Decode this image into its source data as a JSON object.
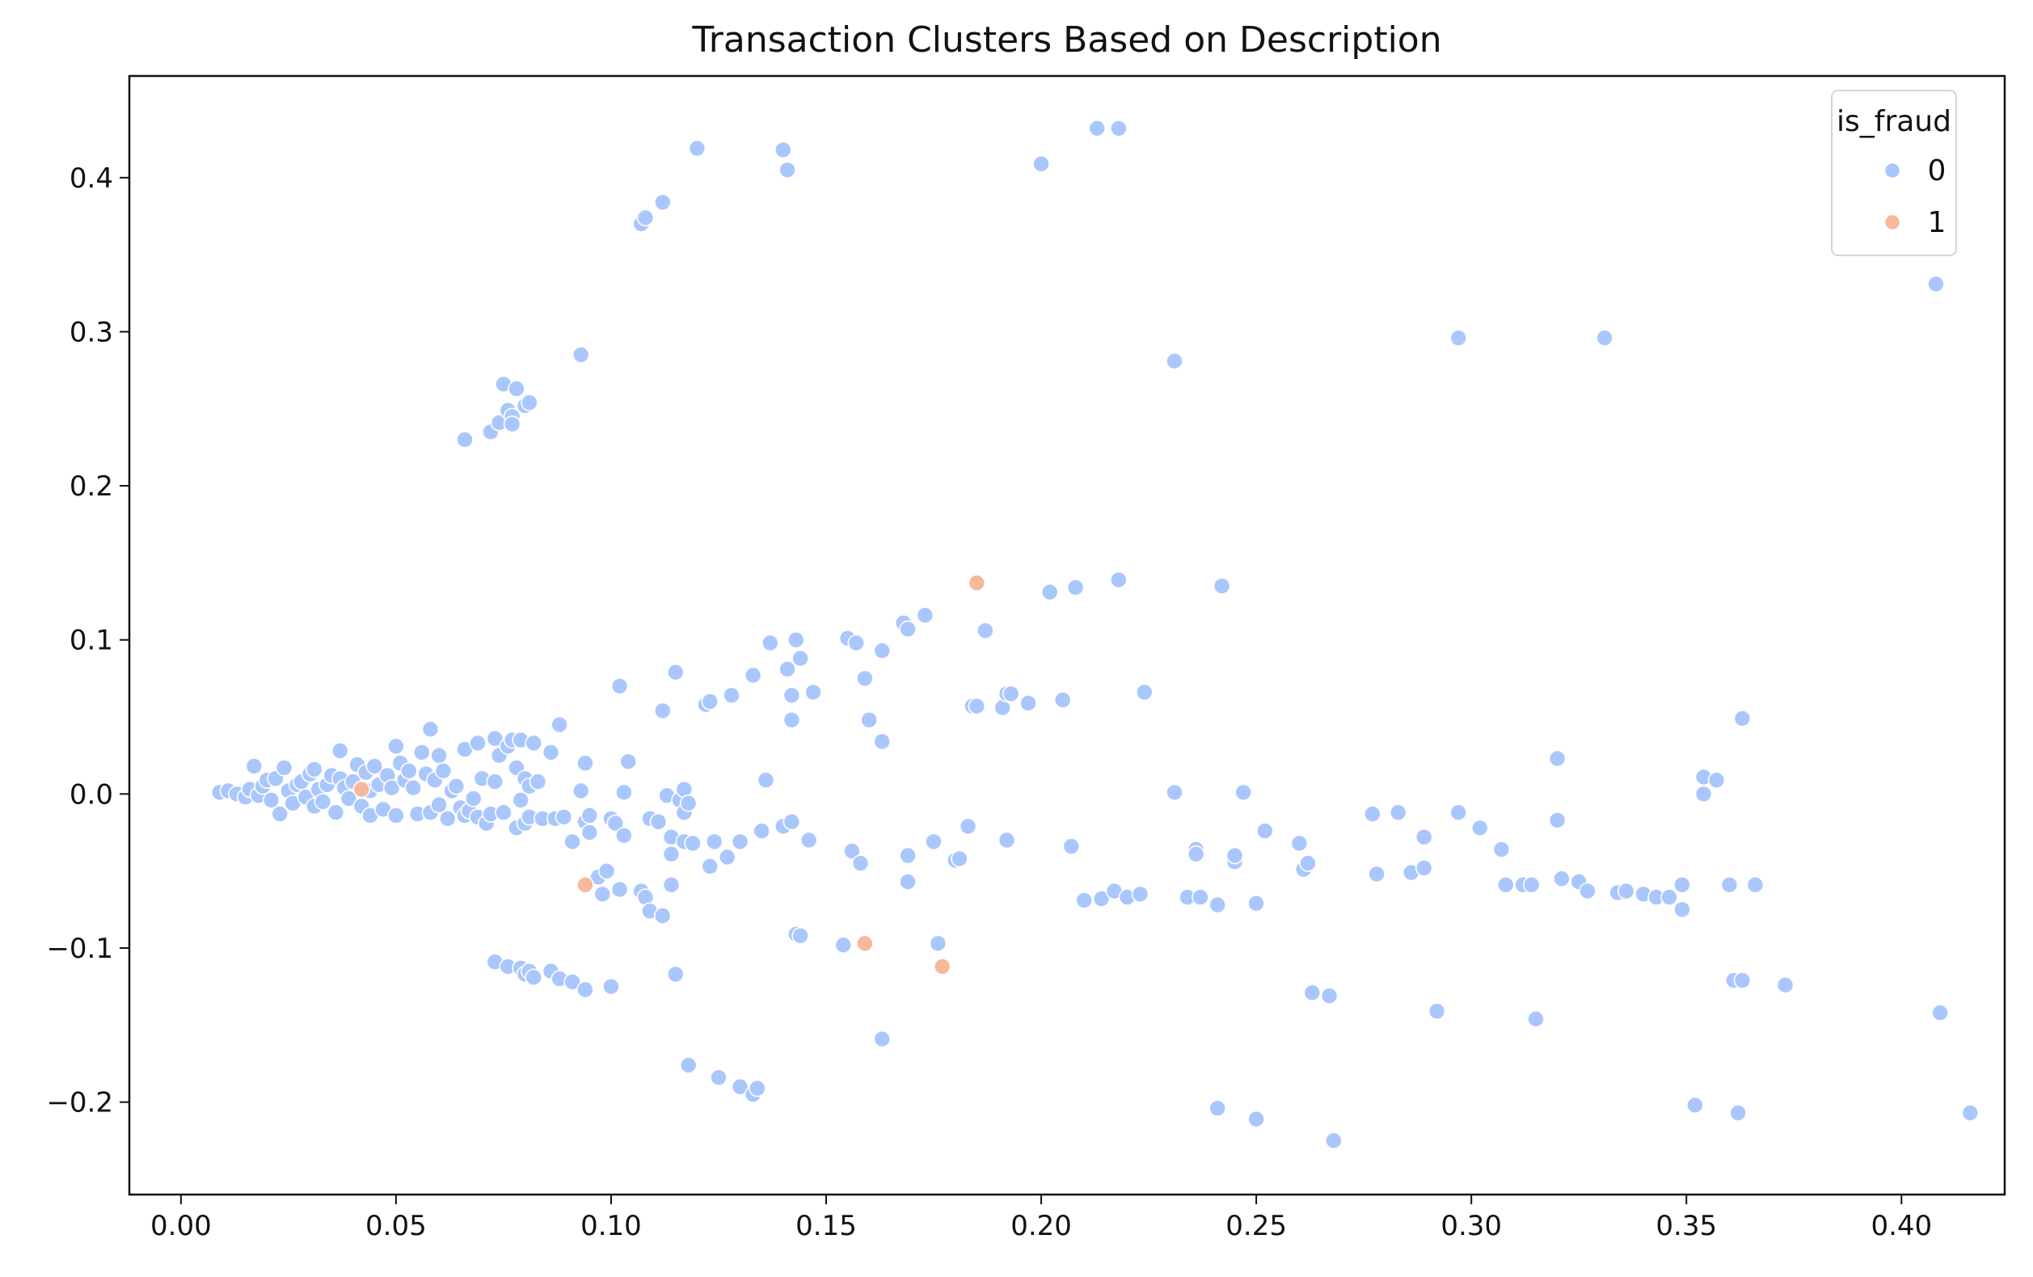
{
  "chart_data": {
    "type": "scatter",
    "title": "Transaction Clusters Based on Description",
    "xlabel": "",
    "ylabel": "",
    "xlim": [
      -0.012,
      0.424
    ],
    "ylim": [
      -0.26,
      0.466
    ],
    "xticks": [
      0.0,
      0.05,
      0.1,
      0.15,
      0.2,
      0.25,
      0.3,
      0.35,
      0.4
    ],
    "xtick_labels": [
      "0.00",
      "0.05",
      "0.10",
      "0.15",
      "0.20",
      "0.25",
      "0.30",
      "0.35",
      "0.40"
    ],
    "yticks": [
      -0.2,
      -0.1,
      0.0,
      0.1,
      0.2,
      0.3,
      0.4
    ],
    "ytick_labels": [
      "−0.2",
      "−0.1",
      "0.0",
      "0.1",
      "0.2",
      "0.3",
      "0.4"
    ],
    "grid": false,
    "legend": {
      "title": "is_fraud",
      "placement": "top-right",
      "entries": [
        {
          "label": "0",
          "color": "#aac7fd"
        },
        {
          "label": "1",
          "color": "#f7b89c"
        }
      ]
    },
    "series": [
      {
        "label": "0",
        "color": "#aac7fd",
        "points": [
          [
            0.009,
            0.001
          ],
          [
            0.011,
            0.002
          ],
          [
            0.013,
            0.0
          ],
          [
            0.015,
            -0.002
          ],
          [
            0.016,
            0.003
          ],
          [
            0.017,
            0.018
          ],
          [
            0.018,
            -0.001
          ],
          [
            0.019,
            0.005
          ],
          [
            0.02,
            0.009
          ],
          [
            0.021,
            -0.004
          ],
          [
            0.022,
            0.01
          ],
          [
            0.023,
            -0.013
          ],
          [
            0.024,
            0.017
          ],
          [
            0.025,
            0.002
          ],
          [
            0.026,
            -0.006
          ],
          [
            0.027,
            0.006
          ],
          [
            0.028,
            0.008
          ],
          [
            0.029,
            -0.002
          ],
          [
            0.03,
            0.013
          ],
          [
            0.031,
            -0.008
          ],
          [
            0.031,
            0.016
          ],
          [
            0.032,
            0.003
          ],
          [
            0.033,
            -0.005
          ],
          [
            0.034,
            0.006
          ],
          [
            0.035,
            0.012
          ],
          [
            0.036,
            -0.012
          ],
          [
            0.037,
            0.028
          ],
          [
            0.037,
            0.01
          ],
          [
            0.038,
            0.004
          ],
          [
            0.039,
            -0.003
          ],
          [
            0.04,
            0.008
          ],
          [
            0.041,
            0.019
          ],
          [
            0.042,
            -0.008
          ],
          [
            0.043,
            0.014
          ],
          [
            0.044,
            0.002
          ],
          [
            0.044,
            -0.014
          ],
          [
            0.045,
            0.018
          ],
          [
            0.046,
            0.006
          ],
          [
            0.047,
            -0.01
          ],
          [
            0.048,
            0.012
          ],
          [
            0.049,
            0.004
          ],
          [
            0.05,
            0.031
          ],
          [
            0.05,
            -0.014
          ],
          [
            0.051,
            0.02
          ],
          [
            0.052,
            0.009
          ],
          [
            0.053,
            0.015
          ],
          [
            0.054,
            0.004
          ],
          [
            0.055,
            -0.013
          ],
          [
            0.056,
            0.027
          ],
          [
            0.057,
            0.013
          ],
          [
            0.058,
            0.042
          ],
          [
            0.058,
            -0.012
          ],
          [
            0.059,
            0.009
          ],
          [
            0.06,
            0.025
          ],
          [
            0.06,
            -0.007
          ],
          [
            0.061,
            0.015
          ],
          [
            0.062,
            -0.016
          ],
          [
            0.063,
            0.002
          ],
          [
            0.064,
            0.005
          ],
          [
            0.065,
            -0.009
          ],
          [
            0.066,
            0.029
          ],
          [
            0.066,
            -0.014
          ],
          [
            0.067,
            -0.011
          ],
          [
            0.068,
            -0.003
          ],
          [
            0.069,
            0.033
          ],
          [
            0.069,
            -0.015
          ],
          [
            0.07,
            0.01
          ],
          [
            0.071,
            -0.019
          ],
          [
            0.072,
            -0.013
          ],
          [
            0.073,
            0.036
          ],
          [
            0.073,
            0.008
          ],
          [
            0.074,
            0.025
          ],
          [
            0.075,
            -0.012
          ],
          [
            0.076,
            0.031
          ],
          [
            0.077,
            0.035
          ],
          [
            0.078,
            0.017
          ],
          [
            0.078,
            -0.022
          ],
          [
            0.079,
            0.035
          ],
          [
            0.079,
            -0.004
          ],
          [
            0.08,
            0.01
          ],
          [
            0.08,
            -0.019
          ],
          [
            0.081,
            -0.015
          ],
          [
            0.081,
            0.005
          ],
          [
            0.082,
            0.033
          ],
          [
            0.083,
            0.008
          ],
          [
            0.084,
            -0.016
          ],
          [
            0.086,
            0.027
          ],
          [
            0.087,
            -0.016
          ],
          [
            0.088,
            0.045
          ],
          [
            0.089,
            -0.015
          ],
          [
            0.091,
            -0.031
          ],
          [
            0.093,
            0.002
          ],
          [
            0.094,
            -0.018
          ],
          [
            0.094,
            0.02
          ],
          [
            0.095,
            -0.025
          ],
          [
            0.095,
            -0.014
          ],
          [
            0.097,
            -0.054
          ],
          [
            0.098,
            -0.065
          ],
          [
            0.099,
            -0.05
          ],
          [
            0.1,
            -0.016
          ],
          [
            0.101,
            -0.019
          ],
          [
            0.102,
            0.07
          ],
          [
            0.102,
            -0.062
          ],
          [
            0.103,
            -0.027
          ],
          [
            0.103,
            0.001
          ],
          [
            0.104,
            0.021
          ],
          [
            0.107,
            -0.063
          ],
          [
            0.108,
            -0.067
          ],
          [
            0.109,
            -0.016
          ],
          [
            0.109,
            -0.076
          ],
          [
            0.111,
            -0.018
          ],
          [
            0.112,
            0.054
          ],
          [
            0.112,
            -0.079
          ],
          [
            0.113,
            -0.001
          ],
          [
            0.114,
            -0.039
          ],
          [
            0.114,
            -0.028
          ],
          [
            0.114,
            -0.059
          ],
          [
            0.115,
            0.079
          ],
          [
            0.116,
            -0.004
          ],
          [
            0.117,
            0.003
          ],
          [
            0.117,
            -0.012
          ],
          [
            0.117,
            -0.031
          ],
          [
            0.118,
            -0.006
          ],
          [
            0.119,
            -0.032
          ],
          [
            0.122,
            0.058
          ],
          [
            0.123,
            0.06
          ],
          [
            0.123,
            -0.047
          ],
          [
            0.124,
            -0.031
          ],
          [
            0.127,
            -0.041
          ],
          [
            0.128,
            0.064
          ],
          [
            0.13,
            -0.031
          ],
          [
            0.133,
            0.077
          ],
          [
            0.135,
            -0.024
          ],
          [
            0.136,
            0.009
          ],
          [
            0.137,
            0.098
          ],
          [
            0.14,
            -0.021
          ],
          [
            0.141,
            0.081
          ],
          [
            0.142,
            0.064
          ],
          [
            0.142,
            0.048
          ],
          [
            0.142,
            -0.018
          ],
          [
            0.143,
            0.1
          ],
          [
            0.144,
            0.088
          ],
          [
            0.146,
            -0.03
          ],
          [
            0.147,
            0.066
          ],
          [
            0.155,
            0.101
          ],
          [
            0.156,
            -0.037
          ],
          [
            0.157,
            0.098
          ],
          [
            0.158,
            -0.045
          ],
          [
            0.159,
            0.075
          ],
          [
            0.16,
            0.048
          ],
          [
            0.163,
            0.034
          ],
          [
            0.163,
            0.093
          ],
          [
            0.168,
            0.111
          ],
          [
            0.169,
            0.107
          ],
          [
            0.169,
            -0.04
          ],
          [
            0.169,
            -0.057
          ],
          [
            0.173,
            0.116
          ],
          [
            0.175,
            -0.031
          ],
          [
            0.18,
            -0.043
          ],
          [
            0.181,
            -0.042
          ],
          [
            0.183,
            -0.021
          ],
          [
            0.184,
            0.057
          ],
          [
            0.185,
            0.057
          ],
          [
            0.187,
            0.106
          ],
          [
            0.191,
            0.056
          ],
          [
            0.192,
            0.065
          ],
          [
            0.192,
            -0.03
          ],
          [
            0.193,
            0.065
          ],
          [
            0.197,
            0.059
          ],
          [
            0.202,
            0.131
          ],
          [
            0.205,
            0.061
          ],
          [
            0.207,
            -0.034
          ],
          [
            0.208,
            0.134
          ],
          [
            0.21,
            -0.069
          ],
          [
            0.214,
            -0.068
          ],
          [
            0.217,
            -0.063
          ],
          [
            0.218,
            0.139
          ],
          [
            0.22,
            -0.067
          ],
          [
            0.223,
            -0.065
          ],
          [
            0.224,
            0.066
          ],
          [
            0.231,
            0.001
          ],
          [
            0.234,
            -0.067
          ],
          [
            0.236,
            -0.036
          ],
          [
            0.236,
            -0.039
          ],
          [
            0.237,
            -0.067
          ],
          [
            0.241,
            -0.072
          ],
          [
            0.242,
            0.135
          ],
          [
            0.245,
            -0.044
          ],
          [
            0.245,
            -0.04
          ],
          [
            0.247,
            0.001
          ],
          [
            0.25,
            -0.071
          ],
          [
            0.252,
            -0.024
          ],
          [
            0.26,
            -0.032
          ],
          [
            0.261,
            -0.049
          ],
          [
            0.262,
            -0.045
          ],
          [
            0.277,
            -0.013
          ],
          [
            0.278,
            -0.052
          ],
          [
            0.283,
            -0.012
          ],
          [
            0.286,
            -0.051
          ],
          [
            0.289,
            -0.028
          ],
          [
            0.289,
            -0.048
          ],
          [
            0.297,
            -0.012
          ],
          [
            0.302,
            -0.022
          ],
          [
            0.307,
            -0.036
          ],
          [
            0.308,
            -0.059
          ],
          [
            0.312,
            -0.059
          ],
          [
            0.314,
            -0.059
          ],
          [
            0.32,
            0.023
          ],
          [
            0.32,
            -0.017
          ],
          [
            0.321,
            -0.055
          ],
          [
            0.325,
            -0.057
          ],
          [
            0.327,
            -0.063
          ],
          [
            0.334,
            -0.064
          ],
          [
            0.336,
            -0.063
          ],
          [
            0.34,
            -0.065
          ],
          [
            0.343,
            -0.067
          ],
          [
            0.346,
            -0.067
          ],
          [
            0.349,
            -0.075
          ],
          [
            0.349,
            -0.059
          ],
          [
            0.354,
            0.011
          ],
          [
            0.354,
            0.0
          ],
          [
            0.357,
            0.009
          ],
          [
            0.36,
            -0.059
          ],
          [
            0.363,
            0.049
          ],
          [
            0.366,
            -0.059
          ],
          [
            0.066,
            0.23
          ],
          [
            0.072,
            0.235
          ],
          [
            0.074,
            0.241
          ],
          [
            0.075,
            0.266
          ],
          [
            0.076,
            0.249
          ],
          [
            0.077,
            0.245
          ],
          [
            0.077,
            0.24
          ],
          [
            0.078,
            0.263
          ],
          [
            0.08,
            0.252
          ],
          [
            0.081,
            0.254
          ],
          [
            0.093,
            0.285
          ],
          [
            0.107,
            0.37
          ],
          [
            0.108,
            0.374
          ],
          [
            0.112,
            0.384
          ],
          [
            0.12,
            0.419
          ],
          [
            0.14,
            0.418
          ],
          [
            0.141,
            0.405
          ],
          [
            0.2,
            0.409
          ],
          [
            0.213,
            0.432
          ],
          [
            0.218,
            0.432
          ],
          [
            0.231,
            0.281
          ],
          [
            0.297,
            0.296
          ],
          [
            0.331,
            0.296
          ],
          [
            0.408,
            0.331
          ],
          [
            0.073,
            -0.109
          ],
          [
            0.076,
            -0.112
          ],
          [
            0.079,
            -0.113
          ],
          [
            0.08,
            -0.117
          ],
          [
            0.081,
            -0.115
          ],
          [
            0.082,
            -0.119
          ],
          [
            0.086,
            -0.115
          ],
          [
            0.088,
            -0.12
          ],
          [
            0.091,
            -0.122
          ],
          [
            0.094,
            -0.127
          ],
          [
            0.1,
            -0.125
          ],
          [
            0.115,
            -0.117
          ],
          [
            0.118,
            -0.176
          ],
          [
            0.125,
            -0.184
          ],
          [
            0.13,
            -0.19
          ],
          [
            0.133,
            -0.195
          ],
          [
            0.134,
            -0.191
          ],
          [
            0.143,
            -0.091
          ],
          [
            0.144,
            -0.092
          ],
          [
            0.154,
            -0.098
          ],
          [
            0.163,
            -0.159
          ],
          [
            0.176,
            -0.097
          ],
          [
            0.241,
            -0.204
          ],
          [
            0.25,
            -0.211
          ],
          [
            0.263,
            -0.129
          ],
          [
            0.267,
            -0.131
          ],
          [
            0.268,
            -0.225
          ],
          [
            0.292,
            -0.141
          ],
          [
            0.315,
            -0.146
          ],
          [
            0.352,
            -0.202
          ],
          [
            0.361,
            -0.121
          ],
          [
            0.362,
            -0.207
          ],
          [
            0.363,
            -0.121
          ],
          [
            0.373,
            -0.124
          ],
          [
            0.409,
            -0.142
          ],
          [
            0.416,
            -0.207
          ]
        ]
      },
      {
        "label": "1",
        "color": "#f7b89c",
        "points": [
          [
            0.042,
            0.003
          ],
          [
            0.094,
            -0.059
          ],
          [
            0.159,
            -0.097
          ],
          [
            0.177,
            -0.112
          ],
          [
            0.185,
            0.137
          ]
        ]
      }
    ]
  }
}
